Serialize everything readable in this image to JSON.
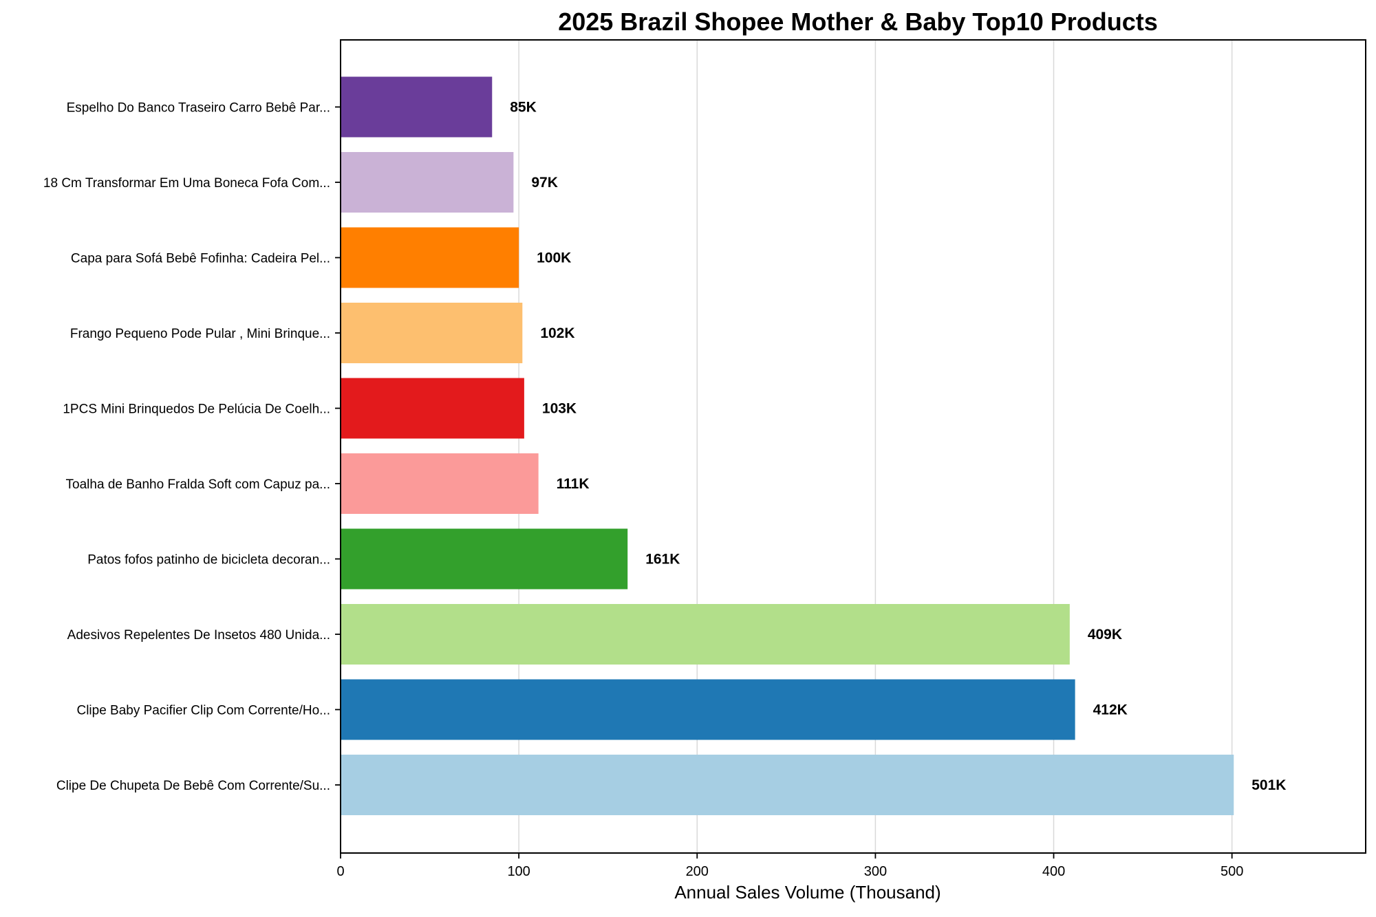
{
  "chart_data": {
    "type": "bar",
    "orientation": "horizontal",
    "title": "2025 Brazil Shopee Mother & Baby Top10 Products",
    "xlabel": "Annual Sales Volume (Thousand)",
    "ylabel": "",
    "xlim": [
      0,
      575
    ],
    "xticks": [
      0,
      100,
      200,
      300,
      400,
      500
    ],
    "grid": "vertical",
    "categories": [
      "Clipe De Chupeta De Bebê Com Corrente/Su...",
      "Clipe Baby Pacifier Clip Com Corrente/Ho...",
      "Adesivos Repelentes De Insetos 480 Unida...",
      "Patos fofos patinho de bicicleta decoran...",
      "Toalha de Banho Fralda Soft com Capuz pa...",
      "1PCS Mini Brinquedos De Pelúcia De Coelh...",
      "Frango Pequeno Pode Pular , Mini Brinque...",
      "Capa para Sofá Bebê Fofinha: Cadeira Pel...",
      "18 Cm Transformar Em Uma Boneca Fofa Com...",
      "Espelho Do Banco Traseiro Carro Bebê Par..."
    ],
    "values": [
      501,
      412,
      409,
      161,
      111,
      103,
      102,
      100,
      97,
      85
    ],
    "value_labels": [
      "501K",
      "412K",
      "409K",
      "161K",
      "111K",
      "103K",
      "102K",
      "100K",
      "97K",
      "85K"
    ],
    "colors": [
      "#a6cee3",
      "#1f78b4",
      "#b2df8a",
      "#33a02c",
      "#fb9a99",
      "#e31a1c",
      "#fdbf6f",
      "#ff7f00",
      "#cab2d6",
      "#6a3d9a"
    ]
  }
}
